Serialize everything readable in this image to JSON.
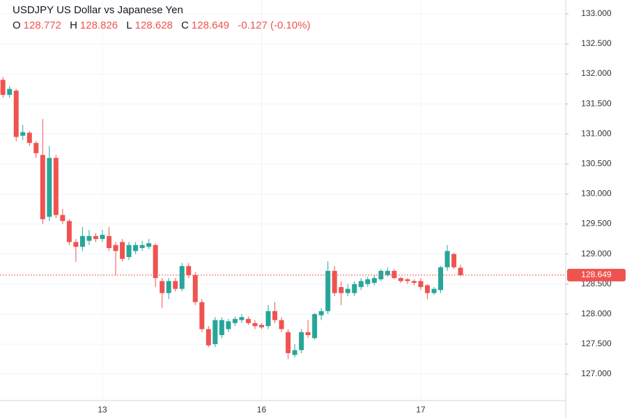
{
  "chart_data": {
    "type": "candlestick",
    "title": "USDJPY US Dollar vs Japanese Yen",
    "ohlc_keys": [
      "O",
      "H",
      "L",
      "C"
    ],
    "change": "-0.127 (-0.10%)",
    "up_color": "#26a69a",
    "down_color": "#ef5350",
    "grid": true,
    "categories": [
      null,
      null,
      null,
      null,
      null,
      null,
      null,
      null,
      null,
      null,
      null,
      null,
      null,
      null,
      null,
      "13",
      null,
      null,
      null,
      null,
      null,
      null,
      null,
      null,
      null,
      null,
      null,
      null,
      null,
      null,
      null,
      null,
      null,
      null,
      null,
      null,
      null,
      null,
      null,
      "16",
      null,
      null,
      null,
      null,
      null,
      null,
      null,
      null,
      null,
      null,
      null,
      null,
      null,
      null,
      null,
      null,
      null,
      null,
      null,
      null,
      null,
      null,
      null,
      "17",
      null,
      null,
      null,
      null,
      null,
      null
    ],
    "open": [
      131.9,
      131.65,
      131.72,
      130.97,
      131.02,
      130.85,
      130.65,
      129.62,
      130.6,
      129.65,
      129.55,
      129.2,
      129.12,
      129.22,
      129.3,
      129.25,
      129.3,
      129.15,
      129.2,
      128.95,
      129.05,
      129.1,
      129.12,
      129.15,
      128.55,
      128.35,
      128.55,
      128.42,
      128.8,
      128.65,
      128.2,
      127.75,
      127.5,
      127.65,
      127.75,
      127.85,
      127.9,
      127.92,
      127.85,
      127.82,
      127.8,
      128.05,
      127.9,
      127.7,
      127.32,
      127.4,
      127.7,
      127.6,
      127.98,
      128.05,
      128.72,
      128.45,
      128.35,
      128.35,
      128.45,
      128.5,
      128.52,
      128.58,
      128.65,
      128.72,
      128.6,
      128.58,
      128.55,
      128.55,
      128.48,
      128.35,
      128.4,
      128.78,
      129.0,
      128.772
    ],
    "high": [
      131.95,
      131.8,
      131.75,
      131.15,
      131.05,
      130.88,
      131.25,
      130.8,
      130.65,
      129.75,
      129.58,
      129.25,
      129.45,
      129.4,
      129.35,
      129.4,
      129.45,
      129.2,
      129.25,
      129.2,
      129.2,
      129.22,
      129.25,
      129.18,
      128.6,
      128.6,
      128.6,
      128.85,
      128.85,
      128.7,
      128.25,
      127.8,
      127.95,
      127.95,
      127.92,
      127.96,
      128.0,
      127.96,
      127.9,
      127.85,
      128.15,
      128.2,
      127.95,
      127.75,
      127.5,
      127.75,
      127.9,
      128.02,
      128.1,
      128.88,
      128.8,
      128.55,
      128.5,
      128.55,
      128.6,
      128.62,
      128.65,
      128.75,
      128.78,
      128.75,
      128.62,
      128.6,
      128.58,
      128.6,
      128.5,
      128.45,
      128.8,
      129.15,
      129.02,
      128.826
    ],
    "low": [
      131.6,
      131.6,
      130.88,
      130.9,
      130.8,
      130.6,
      129.5,
      129.55,
      129.6,
      129.5,
      129.15,
      128.87,
      129.05,
      129.15,
      129.2,
      129.2,
      129.05,
      128.65,
      128.88,
      128.9,
      129.0,
      129.05,
      129.08,
      128.45,
      128.1,
      128.25,
      128.38,
      128.38,
      128.6,
      128.15,
      127.7,
      127.45,
      127.45,
      127.6,
      127.7,
      127.8,
      127.85,
      127.82,
      127.75,
      127.75,
      127.75,
      127.85,
      127.7,
      127.25,
      127.28,
      127.35,
      127.6,
      127.58,
      127.9,
      128.0,
      128.3,
      128.15,
      128.3,
      128.3,
      128.4,
      128.45,
      128.48,
      128.55,
      128.62,
      128.58,
      128.52,
      128.5,
      128.48,
      128.4,
      128.25,
      128.32,
      128.35,
      128.72,
      128.75,
      128.628
    ],
    "close": [
      131.65,
      131.75,
      130.95,
      131.03,
      130.85,
      130.68,
      129.58,
      130.6,
      129.65,
      129.55,
      129.2,
      129.12,
      129.3,
      129.3,
      129.25,
      129.32,
      129.1,
      129.05,
      128.92,
      129.15,
      129.15,
      129.15,
      129.18,
      128.6,
      128.35,
      128.55,
      128.42,
      128.8,
      128.65,
      128.2,
      127.75,
      127.48,
      127.9,
      127.9,
      127.88,
      127.92,
      127.95,
      127.85,
      127.8,
      127.78,
      128.05,
      127.9,
      127.75,
      127.35,
      127.4,
      127.7,
      127.65,
      128.0,
      128.05,
      128.72,
      128.35,
      128.35,
      128.42,
      128.5,
      128.55,
      128.58,
      128.6,
      128.72,
      128.72,
      128.6,
      128.55,
      128.55,
      128.52,
      128.45,
      128.35,
      128.42,
      128.78,
      129.05,
      128.78,
      128.649
    ],
    "ylim": [
      126.56,
      133.23
    ],
    "yticks": [
      {
        "value": 127,
        "label": "127.000"
      },
      {
        "value": 127.5,
        "label": "127.500"
      },
      {
        "value": 128,
        "label": "128.000"
      },
      {
        "value": 128.5,
        "label": "128.500"
      },
      {
        "value": 129,
        "label": "129.000"
      },
      {
        "value": 129.5,
        "label": "129.500"
      },
      {
        "value": 130,
        "label": "130.000"
      },
      {
        "value": 130.5,
        "label": "130.500"
      },
      {
        "value": 131,
        "label": "131.000"
      },
      {
        "value": 131.5,
        "label": "131.500"
      },
      {
        "value": 132,
        "label": "132.000"
      },
      {
        "value": 132.5,
        "label": "132.500"
      },
      {
        "value": 133,
        "label": "133.000"
      }
    ]
  }
}
